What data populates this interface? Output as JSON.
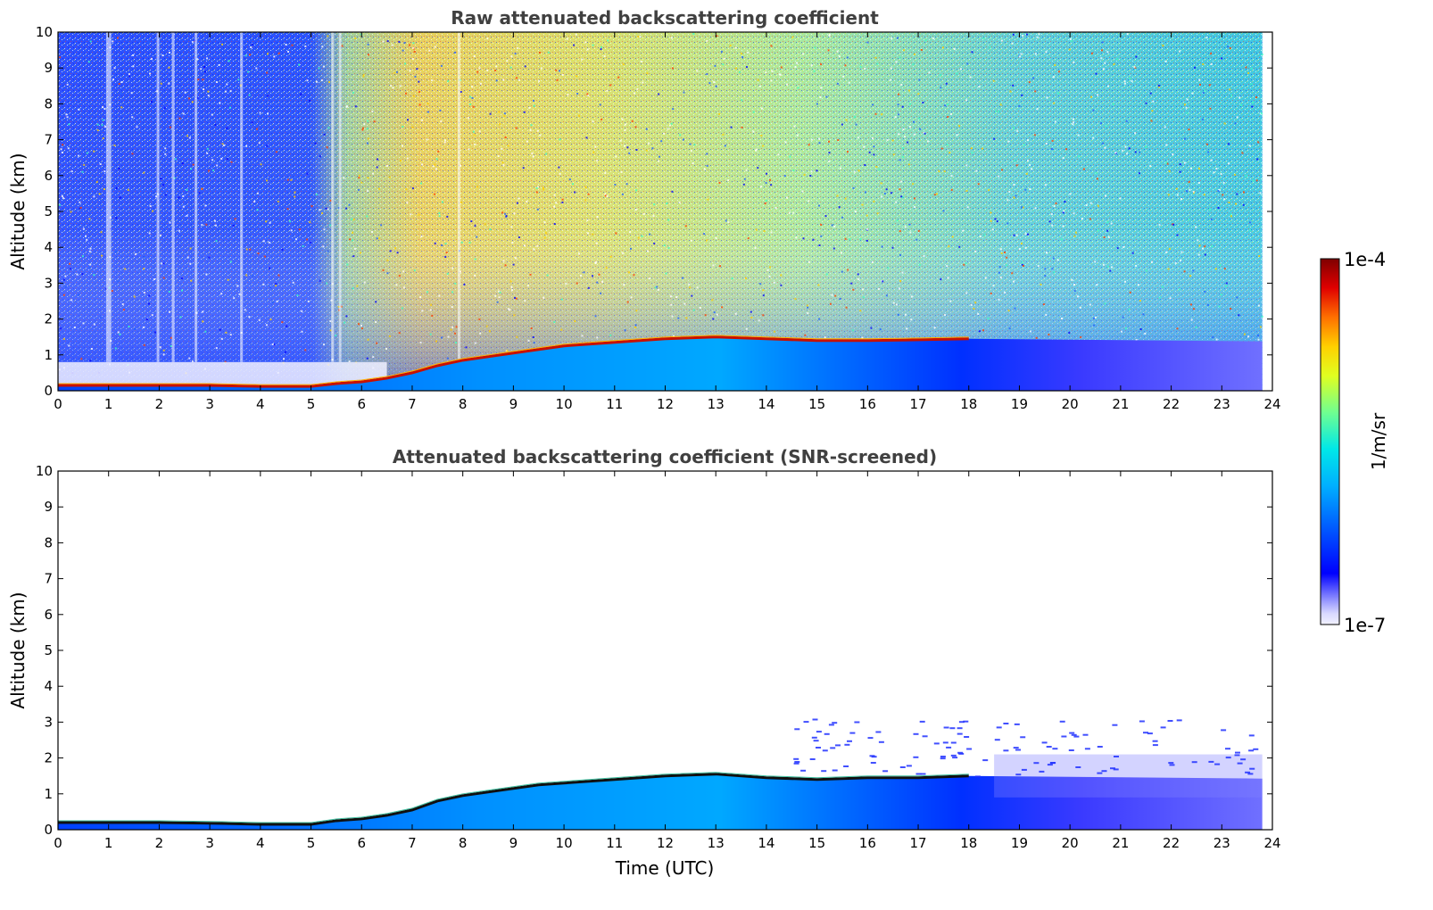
{
  "chart_data": [
    {
      "type": "heatmap",
      "title": "Raw attenuated backscattering coefficient",
      "xlabel": "",
      "ylabel": "Altitude (km)",
      "xlim": [
        0,
        24
      ],
      "ylim": [
        0,
        10
      ],
      "x_ticks": [
        "0",
        "1",
        "2",
        "3",
        "4",
        "5",
        "6",
        "7",
        "8",
        "9",
        "10",
        "11",
        "12",
        "13",
        "14",
        "15",
        "16",
        "17",
        "18",
        "19",
        "20",
        "21",
        "22",
        "23",
        "24"
      ],
      "y_ticks": [
        "0",
        "1",
        "2",
        "3",
        "4",
        "5",
        "6",
        "7",
        "8",
        "9",
        "10"
      ],
      "data_end_time": 23.8,
      "boundary_layer_top_km": {
        "time": [
          0,
          1,
          2,
          3,
          4,
          5,
          5.5,
          6,
          6.5,
          7,
          7.5,
          8,
          8.5,
          9,
          9.5,
          10,
          11,
          12,
          13,
          14,
          15,
          16,
          17,
          18
        ],
        "altitude": [
          0.15,
          0.15,
          0.15,
          0.15,
          0.12,
          0.12,
          0.2,
          0.25,
          0.35,
          0.5,
          0.7,
          0.85,
          0.95,
          1.05,
          1.15,
          1.25,
          1.35,
          1.45,
          1.5,
          1.45,
          1.4,
          1.4,
          1.42,
          1.45
        ]
      }
    },
    {
      "type": "heatmap",
      "title": "Attenuated backscattering coefficient (SNR-screened)",
      "xlabel": "Time (UTC)",
      "ylabel": "Altitude (km)",
      "xlim": [
        0,
        24
      ],
      "ylim": [
        0,
        10
      ],
      "x_ticks": [
        "0",
        "1",
        "2",
        "3",
        "4",
        "5",
        "6",
        "7",
        "8",
        "9",
        "10",
        "11",
        "12",
        "13",
        "14",
        "15",
        "16",
        "17",
        "18",
        "19",
        "20",
        "21",
        "22",
        "23",
        "24"
      ],
      "y_ticks": [
        "0",
        "1",
        "2",
        "3",
        "4",
        "5",
        "6",
        "7",
        "8",
        "9",
        "10"
      ],
      "data_end_time": 23.8,
      "boundary_layer_top_km": {
        "time": [
          0,
          1,
          2,
          3,
          4,
          5,
          5.5,
          6,
          6.5,
          7,
          7.5,
          8,
          8.5,
          9,
          9.5,
          10,
          11,
          12,
          13,
          14,
          15,
          16,
          17,
          18
        ],
        "altitude": [
          0.2,
          0.2,
          0.2,
          0.18,
          0.15,
          0.15,
          0.25,
          0.3,
          0.4,
          0.55,
          0.8,
          0.95,
          1.05,
          1.15,
          1.25,
          1.3,
          1.4,
          1.5,
          1.55,
          1.45,
          1.4,
          1.45,
          1.45,
          1.5
        ]
      }
    }
  ],
  "colorbar": {
    "label": "1/m/sr",
    "max_label": "1e-4",
    "min_label": "1e-7",
    "colormap": [
      "#7f0000",
      "#ff0000",
      "#ff8000",
      "#ffff00",
      "#80ff80",
      "#00ffff",
      "#0080ff",
      "#0000ff",
      "#ffffff"
    ]
  }
}
